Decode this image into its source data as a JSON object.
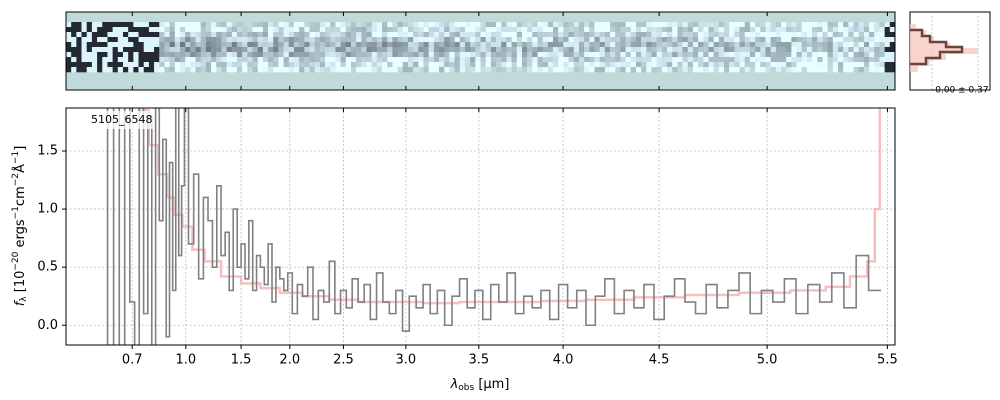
{
  "chart_data": {
    "type": "step",
    "label": "5105_6548",
    "stats_label": "-0.00 ± 0.37",
    "xlabel": [
      "λ",
      "obs",
      " [μm]"
    ],
    "ylabel": [
      "f",
      "λ",
      " [10",
      "−20",
      " ergs",
      "−1",
      "cm",
      "−2",
      "Å",
      "−1",
      "]"
    ],
    "xlim": [
      0.5,
      5.53
    ],
    "ylim": [
      -0.17,
      1.87
    ],
    "xticks": [
      0.7,
      {
        "value": 1,
        "label": "1.0"
      },
      1.5,
      {
        "value": 2,
        "label": "2.0"
      },
      2.5,
      {
        "value": 3,
        "label": "3.0"
      },
      3.5,
      {
        "value": 4,
        "label": "4.0"
      },
      4.5,
      {
        "value": 5,
        "label": "5.0"
      },
      5.5
    ],
    "yticks": [
      {
        "value": 0,
        "label": "0.0"
      },
      0.5,
      {
        "value": 1,
        "label": "1.0"
      },
      1.5
    ],
    "grid": true,
    "series": [
      {
        "color": "#f4b0b0",
        "x": [
          0.75,
          0.8,
          0.85,
          0.9,
          0.95,
          1.0,
          1.1,
          1.2,
          1.4,
          1.6,
          1.8,
          2.0,
          2.25,
          2.5,
          2.75,
          3.0,
          3.25,
          3.5,
          3.75,
          4.0,
          4.25,
          4.5,
          4.75,
          5.0,
          5.2,
          5.3,
          5.4,
          5.44,
          5.46,
          5.48
        ],
        "values": [
          1.85,
          1.55,
          1.3,
          1.1,
          0.95,
          0.85,
          0.65,
          0.55,
          0.42,
          0.36,
          0.32,
          0.28,
          0.25,
          0.22,
          0.2,
          0.2,
          0.19,
          0.2,
          0.2,
          0.21,
          0.22,
          0.24,
          0.26,
          0.28,
          0.3,
          0.33,
          0.42,
          0.55,
          1.0,
          1.9
        ]
      },
      {
        "color": "#808080",
        "x": [
          0.6,
          0.62,
          0.64,
          0.66,
          0.68,
          0.7,
          0.72,
          0.74,
          0.76,
          0.78,
          0.8,
          0.82,
          0.84,
          0.86,
          0.88,
          0.9,
          0.92,
          0.94,
          0.96,
          0.98,
          1.0,
          1.04,
          1.08,
          1.12,
          1.16,
          1.2,
          1.24,
          1.28,
          1.32,
          1.36,
          1.4,
          1.44,
          1.48,
          1.52,
          1.56,
          1.6,
          1.64,
          1.68,
          1.72,
          1.76,
          1.8,
          1.84,
          1.88,
          1.92,
          1.96,
          2.0,
          2.05,
          2.1,
          2.15,
          2.2,
          2.25,
          2.3,
          2.35,
          2.4,
          2.45,
          2.5,
          2.55,
          2.6,
          2.65,
          2.7,
          2.75,
          2.8,
          2.85,
          2.9,
          2.95,
          3.0,
          3.05,
          3.1,
          3.15,
          3.2,
          3.25,
          3.3,
          3.35,
          3.4,
          3.45,
          3.5,
          3.55,
          3.6,
          3.65,
          3.7,
          3.75,
          3.8,
          3.85,
          3.9,
          3.95,
          4.0,
          4.05,
          4.1,
          4.15,
          4.2,
          4.25,
          4.3,
          4.35,
          4.4,
          4.45,
          4.5,
          4.55,
          4.6,
          4.65,
          4.7,
          4.75,
          4.8,
          4.85,
          4.9,
          4.95,
          5.0,
          5.05,
          5.1,
          5.15,
          5.2,
          5.25,
          5.3,
          5.35,
          5.4,
          5.45
        ],
        "values": [
          2.5,
          -0.5,
          1.9,
          -0.3,
          2.4,
          0.2,
          -0.4,
          2.1,
          0.1,
          1.8,
          -0.2,
          2.2,
          0.9,
          1.6,
          -0.1,
          1.4,
          0.3,
          1.9,
          0.6,
          1.2,
          1.9,
          0.7,
          1.3,
          0.4,
          1.1,
          0.9,
          0.5,
          1.2,
          0.6,
          0.8,
          0.3,
          1.0,
          0.5,
          0.7,
          0.4,
          0.9,
          0.3,
          0.6,
          0.5,
          0.35,
          0.7,
          0.2,
          0.5,
          0.4,
          0.3,
          0.45,
          0.1,
          0.35,
          0.25,
          0.5,
          0.05,
          0.3,
          0.2,
          0.55,
          0.1,
          0.3,
          0.15,
          0.4,
          0.2,
          0.35,
          0.05,
          0.45,
          0.2,
          0.1,
          0.3,
          -0.05,
          0.25,
          0.15,
          0.35,
          0.1,
          0.3,
          0.0,
          0.25,
          0.4,
          0.15,
          0.3,
          0.05,
          0.35,
          0.2,
          0.45,
          0.1,
          0.25,
          0.15,
          0.3,
          0.05,
          0.35,
          0.15,
          0.3,
          0.0,
          0.25,
          0.4,
          0.1,
          0.3,
          0.15,
          0.35,
          0.05,
          0.25,
          0.4,
          0.2,
          0.1,
          0.35,
          0.15,
          0.3,
          0.45,
          0.1,
          0.3,
          0.2,
          0.4,
          0.1,
          0.35,
          0.2,
          0.45,
          0.15,
          0.6,
          0.3
        ]
      }
    ]
  }
}
